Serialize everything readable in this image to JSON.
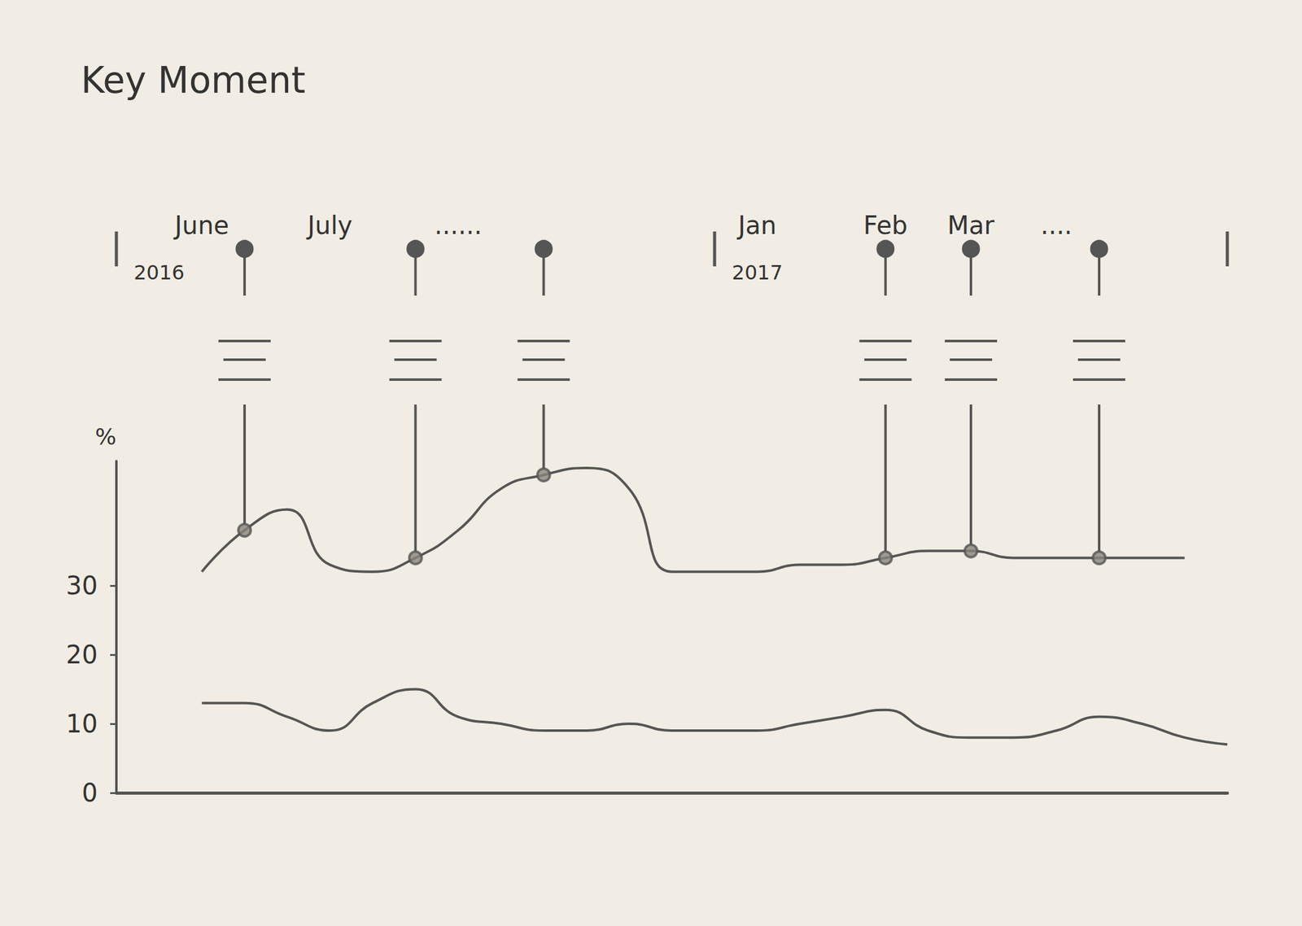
{
  "chart_data": {
    "type": "line",
    "title": "Key Moment",
    "categories": [
      null,
      null,
      "June",
      null,
      null,
      "July",
      null,
      null,
      "......",
      null,
      null,
      null,
      null,
      null,
      null,
      "Jan",
      null,
      null,
      "Feb",
      null,
      "Mar",
      null,
      "....",
      null,
      null,
      null,
      null
    ],
    "year_labels": [
      null,
      "2016",
      null,
      null,
      null,
      null,
      null,
      null,
      null,
      null,
      null,
      null,
      null,
      null,
      null,
      "2017",
      null,
      null,
      null,
      null,
      null,
      null,
      null,
      null,
      null,
      null,
      null
    ],
    "y_label": "%",
    "ylim": [
      0,
      48
    ],
    "yticks": [
      0,
      10,
      20,
      30
    ],
    "grid": false,
    "color": "#555555",
    "series": [
      {
        "type": "line",
        "line_style": "solid",
        "values": [
          null,
          null,
          32,
          38,
          41,
          33,
          32,
          34,
          38,
          44,
          46,
          47,
          44,
          32,
          32,
          32,
          33,
          33,
          34,
          35,
          35,
          34,
          34,
          34,
          34,
          34,
          null
        ]
      },
      {
        "type": "line",
        "line_style": "solid",
        "values": [
          null,
          null,
          13,
          13,
          11,
          9,
          13,
          15,
          11,
          10,
          9,
          9,
          10,
          9,
          9,
          9,
          10,
          11,
          12,
          9,
          8,
          8,
          9,
          11,
          10,
          8,
          7
        ]
      },
      {
        "type": "scatter",
        "marker": "circle",
        "values": [
          null,
          null,
          null,
          38,
          null,
          null,
          null,
          34,
          null,
          null,
          46,
          null,
          null,
          null,
          null,
          null,
          null,
          null,
          34,
          null,
          35,
          null,
          null,
          34,
          null,
          null,
          null
        ]
      }
    ]
  }
}
